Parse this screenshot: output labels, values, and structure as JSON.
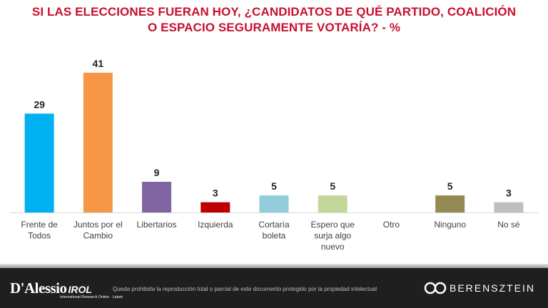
{
  "title": {
    "line1": "SI LAS ELECCIONES FUERAN HOY, ¿CANDIDATOS DE QUÉ PARTIDO, COALICIÓN",
    "line2": "O ESPACIO SEGURAMENTE VOTARÍA? - %"
  },
  "chart_data": {
    "type": "bar",
    "title": "SI LAS ELECCIONES FUERAN HOY, ¿CANDIDATOS DE QUÉ PARTIDO, COALICIÓN O ESPACIO SEGURAMENTE VOTARÍA? - %",
    "categories": [
      [
        "Frente de",
        "Todos"
      ],
      [
        "Juntos por el",
        "Cambio"
      ],
      [
        "Libertarios"
      ],
      [
        "Izquierda"
      ],
      [
        "Cortaría",
        "boleta"
      ],
      [
        "Espero que",
        "surja algo",
        "nuevo"
      ],
      [
        "Otro"
      ],
      [
        "Ninguno"
      ],
      [
        "No sé"
      ]
    ],
    "values": [
      29,
      41,
      9,
      3,
      5,
      5,
      null,
      5,
      3
    ],
    "labels": [
      "29",
      "41",
      "9",
      "3",
      "5",
      "5",
      "",
      "5",
      "3"
    ],
    "colors": [
      "#00b0f0",
      "#f79646",
      "#8064a2",
      "#c00000",
      "#92cddc",
      "#c4d79b",
      "#ffffff",
      "#948a54",
      "#bfbfbf"
    ],
    "ylim": [
      0,
      41
    ],
    "grid": false,
    "legend": "none"
  },
  "footer": {
    "logo_left": "D'Alessio",
    "logo_left_irol": "IROL",
    "logo_left_sub": "International Research Online · Latam",
    "disclaimer": "Queda prohibida la reproducción total o parcial de este documento protegido por la propiedad intelectual",
    "logo_right": "BERENSZTEIN"
  }
}
